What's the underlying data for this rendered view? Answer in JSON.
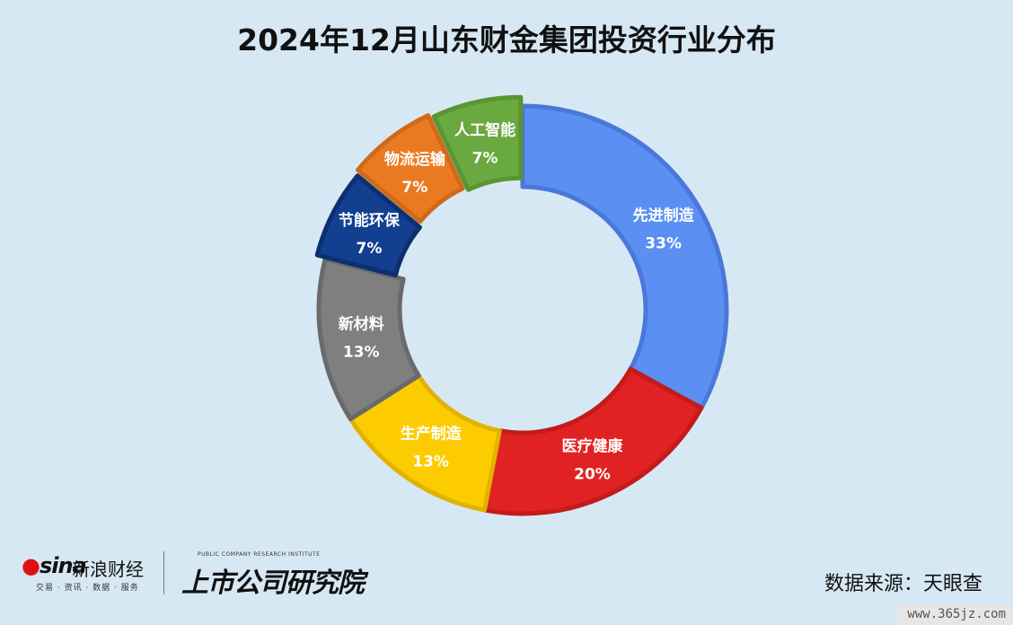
{
  "title": "2024年12月山东财金集团投资行业分布",
  "chart_data": {
    "type": "pie",
    "subtype": "donut",
    "title": "2024年12月山东财金集团投资行业分布",
    "categories": [
      "先进制造",
      "医疗健康",
      "生产制造",
      "新材料",
      "节能环保",
      "物流运输",
      "人工智能"
    ],
    "values": [
      33,
      20,
      13,
      13,
      7,
      7,
      7
    ],
    "value_labels": [
      "33%",
      "20%",
      "13%",
      "13%",
      "7%",
      "7%",
      "7%"
    ],
    "colors": [
      "#5b8ff2",
      "#e12222",
      "#fccc00",
      "#7f7f7f",
      "#123f90",
      "#ea7a22",
      "#6aa840"
    ],
    "edge_colors": [
      "#4a78d9",
      "#c41a1a",
      "#e0b300",
      "#6a6a6a",
      "#0c2f70",
      "#cf6a1a",
      "#5a9433"
    ],
    "start_angle_deg": 0,
    "direction": "clockwise",
    "legend": "none"
  },
  "footer": {
    "sina_logo": "sina",
    "sina_name": "新浪财经",
    "sina_tagline": "交易 · 资讯 · 数据 · 服务",
    "institute_en": "PUBLIC COMPANY RESEARCH INSTITUTE",
    "institute_name": "上市公司研究院",
    "source": "数据来源：天眼查"
  },
  "watermark": "www.365jz.com"
}
